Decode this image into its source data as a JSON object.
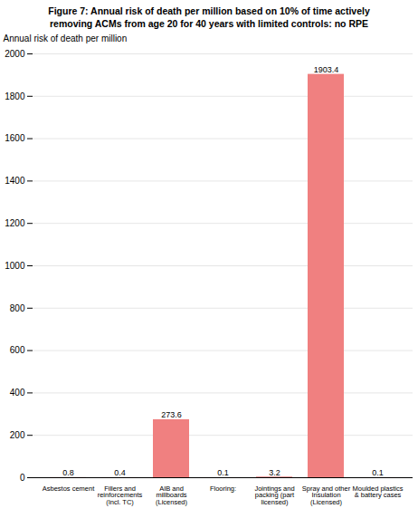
{
  "chart_data": {
    "type": "bar",
    "title": "Figure 7: Annual risk of death per million based on 10% of time actively",
    "subtitle": "removing ACMs from age 20 for 40 years with limited controls: no RPE",
    "categories": [
      "Asbestos cement",
      "Fillers and\nreinforcements\n(Incl. TC)",
      "AIB and\nmillboards\n(Licensed)",
      "Flooring:",
      "Jointings and\npacking (part\nlicensed)",
      "Spray and other\nInsulation\n(Licensed)",
      "Moulded plastics\n& battery cases"
    ],
    "values": [
      0.8,
      0.4,
      273.6,
      0.1,
      3.2,
      1903.4,
      0.1
    ],
    "color": "#F08080",
    "ylabel": "Annual risk of death per million",
    "ylim": [
      0,
      2000
    ],
    "yticks": [
      0,
      200,
      400,
      600,
      800,
      1000,
      1200,
      1400,
      1600,
      1800,
      2000
    ],
    "grid": true,
    "data_labels": true
  }
}
